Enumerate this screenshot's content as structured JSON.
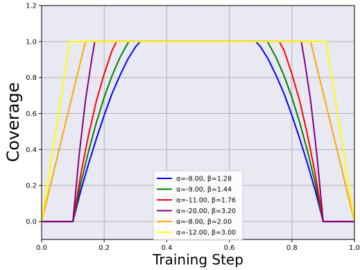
{
  "chart_data": {
    "type": "line",
    "title": "",
    "xlabel": "Training Step",
    "ylabel": "Coverage",
    "xlim": [
      0.0,
      1.0
    ],
    "ylim": [
      -0.1,
      1.2
    ],
    "xticks": [
      0.0,
      0.2,
      0.4,
      0.6,
      0.8,
      1.0
    ],
    "xtick_labels": [
      "0.0",
      "0.2",
      "0.4",
      "0.6",
      "0.8",
      "1.0"
    ],
    "yticks": [
      0.0,
      0.2,
      0.4,
      0.6,
      0.8,
      1.0,
      1.2
    ],
    "ytick_labels": [
      "0.0",
      "0.2",
      "0.4",
      "0.6",
      "0.8",
      "1.0",
      "1.2"
    ],
    "grid": true,
    "legend_position": "lower-center",
    "series": [
      {
        "name": "α=-8.00, β=1.28",
        "color": "#0000ff",
        "x": [
          0.0,
          0.1,
          0.125,
          0.15,
          0.175,
          0.2,
          0.225,
          0.25,
          0.275,
          0.3,
          0.315,
          0.685,
          0.7,
          0.725,
          0.75,
          0.775,
          0.8,
          0.825,
          0.85,
          0.875,
          0.9,
          1.0
        ],
        "y": [
          0.0,
          0.0,
          0.17,
          0.32,
          0.46,
          0.59,
          0.71,
          0.81,
          0.9,
          0.97,
          1.0,
          1.0,
          0.97,
          0.9,
          0.81,
          0.71,
          0.59,
          0.46,
          0.32,
          0.17,
          0.0,
          0.0
        ]
      },
      {
        "name": "α=-9.00, β=1.44",
        "color": "#008000",
        "x": [
          0.0,
          0.1,
          0.125,
          0.15,
          0.175,
          0.2,
          0.225,
          0.25,
          0.275,
          0.28,
          0.72,
          0.725,
          0.75,
          0.775,
          0.8,
          0.825,
          0.85,
          0.875,
          0.9,
          1.0
        ],
        "y": [
          0.0,
          0.0,
          0.21,
          0.39,
          0.55,
          0.69,
          0.81,
          0.91,
          0.99,
          1.0,
          1.0,
          0.99,
          0.91,
          0.81,
          0.69,
          0.55,
          0.39,
          0.21,
          0.0,
          0.0
        ]
      },
      {
        "name": "α=-11.00, β=1.76",
        "color": "#ff0000",
        "x": [
          0.0,
          0.1,
          0.125,
          0.15,
          0.175,
          0.2,
          0.225,
          0.24,
          0.76,
          0.775,
          0.8,
          0.825,
          0.85,
          0.875,
          0.9,
          1.0
        ],
        "y": [
          0.0,
          0.0,
          0.26,
          0.48,
          0.67,
          0.82,
          0.95,
          1.0,
          1.0,
          0.95,
          0.82,
          0.67,
          0.48,
          0.26,
          0.0,
          0.0
        ]
      },
      {
        "name": "α=-20.00, β=3.20",
        "color": "#800080",
        "x": [
          0.0,
          0.1,
          0.12,
          0.14,
          0.16,
          0.17,
          0.83,
          0.84,
          0.86,
          0.88,
          0.9,
          1.0
        ],
        "y": [
          0.0,
          0.0,
          0.37,
          0.67,
          0.9,
          1.0,
          1.0,
          0.9,
          0.67,
          0.37,
          0.0,
          0.0
        ]
      },
      {
        "name": "α=-8.00, β=2.00",
        "color": "#ffa500",
        "x": [
          0.0,
          0.14,
          0.86,
          1.0
        ],
        "y": [
          0.0,
          1.0,
          1.0,
          0.0
        ]
      },
      {
        "name": "α=-12.00, β=3.00",
        "color": "#ffff00",
        "x": [
          0.0,
          0.09,
          0.91,
          1.0
        ],
        "y": [
          0.0,
          1.0,
          1.0,
          0.0
        ]
      }
    ]
  }
}
